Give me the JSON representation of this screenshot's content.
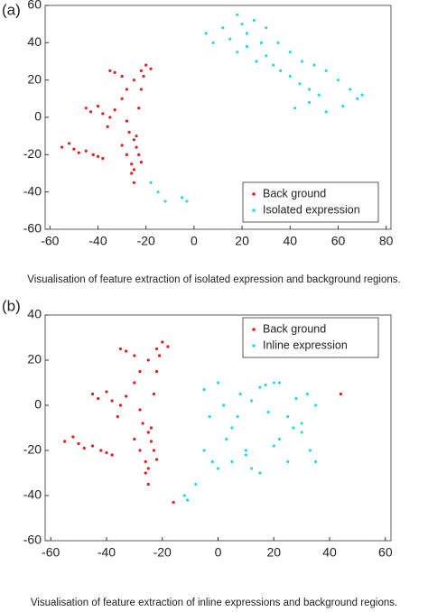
{
  "chart_data": [
    {
      "type": "scatter",
      "label": "(a)",
      "caption": "Visualisation of feature extraction of isolated expression and background regions.",
      "xlim": [
        -62,
        82
      ],
      "ylim": [
        -60,
        60
      ],
      "xticks": [
        -60,
        -40,
        -20,
        0,
        20,
        40,
        60,
        80
      ],
      "yticks": [
        -60,
        -40,
        -20,
        0,
        20,
        40,
        60
      ],
      "legend": "lower right",
      "series": [
        {
          "name": "Back ground",
          "color": "#e8191e",
          "x": [
            -55,
            -52,
            -50,
            -48,
            -45,
            -42,
            -40,
            -38,
            -45,
            -43,
            -40,
            -38,
            -35,
            -33,
            -30,
            -28,
            -25,
            -22,
            -20,
            -18,
            -36,
            -35,
            -33,
            -30,
            -28,
            -27,
            -25,
            -24,
            -23,
            -22,
            -30,
            -28,
            -26,
            -25,
            -24,
            -23,
            -22,
            -21,
            -26,
            -25
          ],
          "values": [
            -16,
            -14,
            -17,
            -19,
            -18,
            -20,
            -21,
            -22,
            5,
            3,
            6,
            2,
            25,
            24,
            22,
            15,
            20,
            25,
            28,
            26,
            -5,
            0,
            4,
            10,
            -2,
            -8,
            -12,
            -16,
            -20,
            -24,
            -15,
            -20,
            -25,
            -28,
            -10,
            5,
            15,
            22,
            -30,
            -35
          ]
        },
        {
          "name": "Isolated expression",
          "color": "#26d9e6",
          "x": [
            5,
            8,
            12,
            15,
            18,
            20,
            22,
            25,
            28,
            30,
            18,
            22,
            26,
            30,
            33,
            36,
            40,
            44,
            48,
            52,
            35,
            40,
            45,
            50,
            55,
            60,
            65,
            70,
            42,
            48,
            55,
            62,
            68,
            -18,
            -15,
            -12,
            -5,
            -3
          ],
          "values": [
            45,
            40,
            48,
            42,
            55,
            50,
            45,
            52,
            40,
            48,
            35,
            38,
            30,
            33,
            28,
            25,
            22,
            18,
            15,
            12,
            40,
            35,
            30,
            28,
            25,
            20,
            15,
            12,
            5,
            8,
            3,
            6,
            10,
            -35,
            -40,
            -45,
            -43,
            -45
          ]
        }
      ]
    },
    {
      "type": "scatter",
      "label": "(b)",
      "caption": "Visualisation of feature extraction of inline expressions and background regions.",
      "xlim": [
        -62,
        62
      ],
      "ylim": [
        -60,
        40
      ],
      "xticks": [
        -60,
        -40,
        -20,
        0,
        20,
        40,
        60
      ],
      "yticks": [
        -60,
        -40,
        -20,
        0,
        20,
        40
      ],
      "legend": "upper right",
      "series": [
        {
          "name": "Back ground",
          "color": "#e8191e",
          "x": [
            -55,
            -52,
            -50,
            -48,
            -45,
            -42,
            -40,
            -38,
            -45,
            -43,
            -40,
            -38,
            -35,
            -33,
            -30,
            -28,
            -25,
            -22,
            -20,
            -18,
            -36,
            -35,
            -33,
            -30,
            -28,
            -27,
            -25,
            -24,
            -23,
            -22,
            -30,
            -28,
            -26,
            -25,
            -24,
            -23,
            -22,
            -21,
            -26,
            -25,
            -16,
            44
          ],
          "values": [
            -16,
            -14,
            -17,
            -19,
            -18,
            -20,
            -21,
            -22,
            5,
            3,
            6,
            2,
            25,
            24,
            22,
            15,
            20,
            25,
            28,
            26,
            -5,
            0,
            4,
            10,
            -2,
            -8,
            -12,
            -16,
            -20,
            -24,
            -15,
            -20,
            -25,
            -28,
            -10,
            5,
            15,
            22,
            -30,
            -35,
            -43,
            5
          ]
        },
        {
          "name": "Inline expression",
          "color": "#26d9e6",
          "x": [
            -5,
            -3,
            0,
            2,
            5,
            8,
            10,
            12,
            15,
            18,
            20,
            22,
            25,
            28,
            30,
            33,
            35,
            -2,
            3,
            7,
            12,
            17,
            22,
            27,
            32,
            0,
            5,
            10,
            15,
            20,
            25,
            30,
            35,
            -8,
            -5,
            -12,
            -11
          ],
          "values": [
            7,
            -5,
            10,
            0,
            -10,
            5,
            -20,
            -28,
            8,
            -3,
            10,
            -15,
            -25,
            3,
            -8,
            -20,
            0,
            -25,
            -15,
            -5,
            2,
            9,
            10,
            -10,
            5,
            -28,
            -25,
            -22,
            -30,
            -18,
            -5,
            -12,
            -25,
            -35,
            -20,
            -40,
            -42
          ]
        }
      ]
    }
  ]
}
